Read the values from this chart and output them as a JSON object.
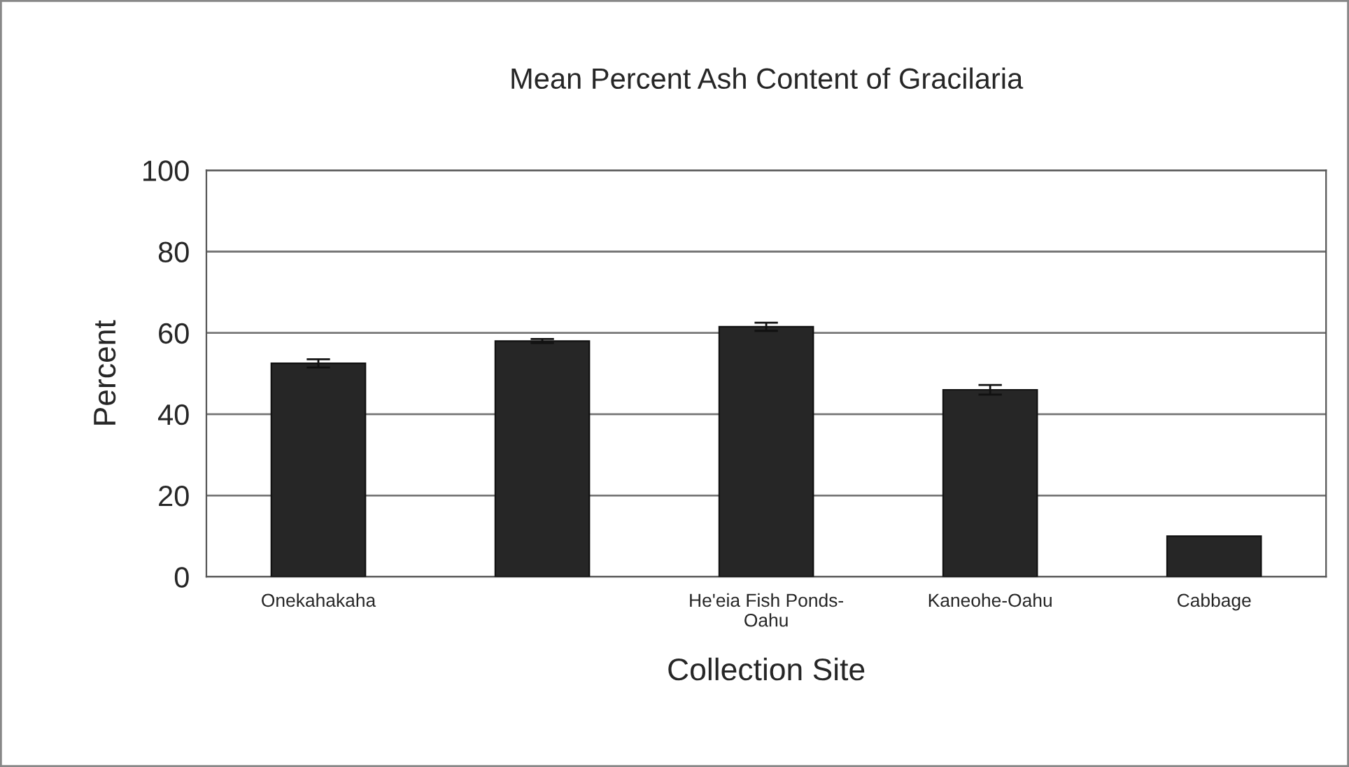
{
  "chart_data": {
    "type": "bar",
    "title": "Mean Percent Ash Content of Gracilaria",
    "xlabel": "Collection Site",
    "ylabel": "Percent",
    "categories": [
      "Onekahakaha",
      null,
      "He'eia Fish Ponds-\nOahu",
      "Kaneohe-Oahu",
      "Cabbage"
    ],
    "values": [
      52.5,
      58,
      61.5,
      46,
      10
    ],
    "errors": [
      1,
      0.5,
      1,
      1.2,
      null
    ],
    "color": "#262626",
    "ylim": [
      0,
      100
    ],
    "yticks": [
      0,
      20,
      40,
      60,
      80,
      100
    ],
    "grid": "y"
  }
}
